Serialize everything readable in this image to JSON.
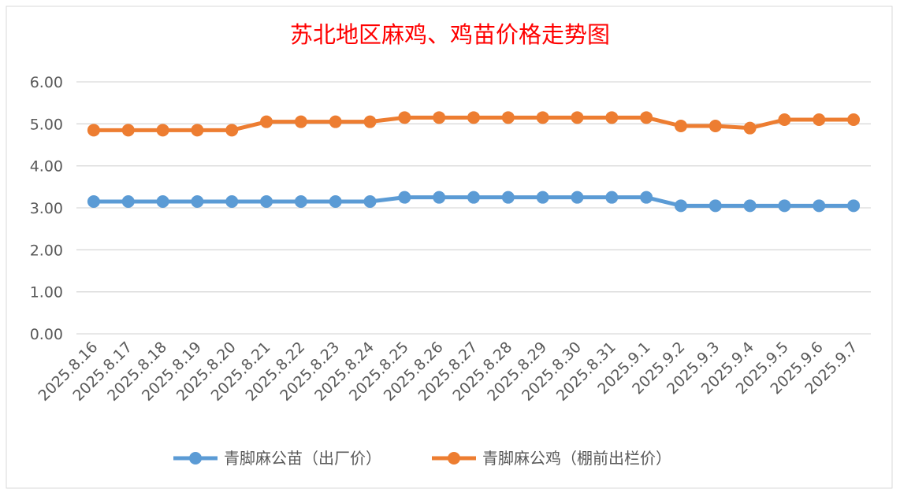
{
  "chart_data": {
    "type": "line",
    "title": "苏北地区麻鸡、鸡苗价格走势图",
    "xlabel": "",
    "ylabel": "",
    "ylim": [
      0,
      6
    ],
    "yticks": [
      "0.00",
      "1.00",
      "2.00",
      "3.00",
      "4.00",
      "5.00",
      "6.00"
    ],
    "grid": true,
    "legend_position": "bottom",
    "categories": [
      "2025.8.16",
      "2025.8.17",
      "2025.8.18",
      "2025.8.19",
      "2025.8.20",
      "2025.8.21",
      "2025.8.22",
      "2025.8.23",
      "2025.8.24",
      "2025.8.25",
      "2025.8.26",
      "2025.8.27",
      "2025.8.28",
      "2025.8.29",
      "2025.8.30",
      "2025.8.31",
      "2025.9.1",
      "2025.9.2",
      "2025.9.3",
      "2025.9.4",
      "2025.9.5",
      "2025.9.6",
      "2025.9.7"
    ],
    "series": [
      {
        "name": "青脚麻公苗（出厂价）",
        "color": "#5b9bd5",
        "values": [
          3.15,
          3.15,
          3.15,
          3.15,
          3.15,
          3.15,
          3.15,
          3.15,
          3.15,
          3.25,
          3.25,
          3.25,
          3.25,
          3.25,
          3.25,
          3.25,
          3.25,
          3.05,
          3.05,
          3.05,
          3.05,
          3.05,
          3.05
        ]
      },
      {
        "name": "青脚麻公鸡（棚前出栏价）",
        "color": "#ed7d31",
        "values": [
          4.85,
          4.85,
          4.85,
          4.85,
          4.85,
          5.05,
          5.05,
          5.05,
          5.05,
          5.15,
          5.15,
          5.15,
          5.15,
          5.15,
          5.15,
          5.15,
          5.15,
          4.95,
          4.95,
          4.9,
          5.1,
          5.1,
          5.1
        ]
      }
    ]
  }
}
